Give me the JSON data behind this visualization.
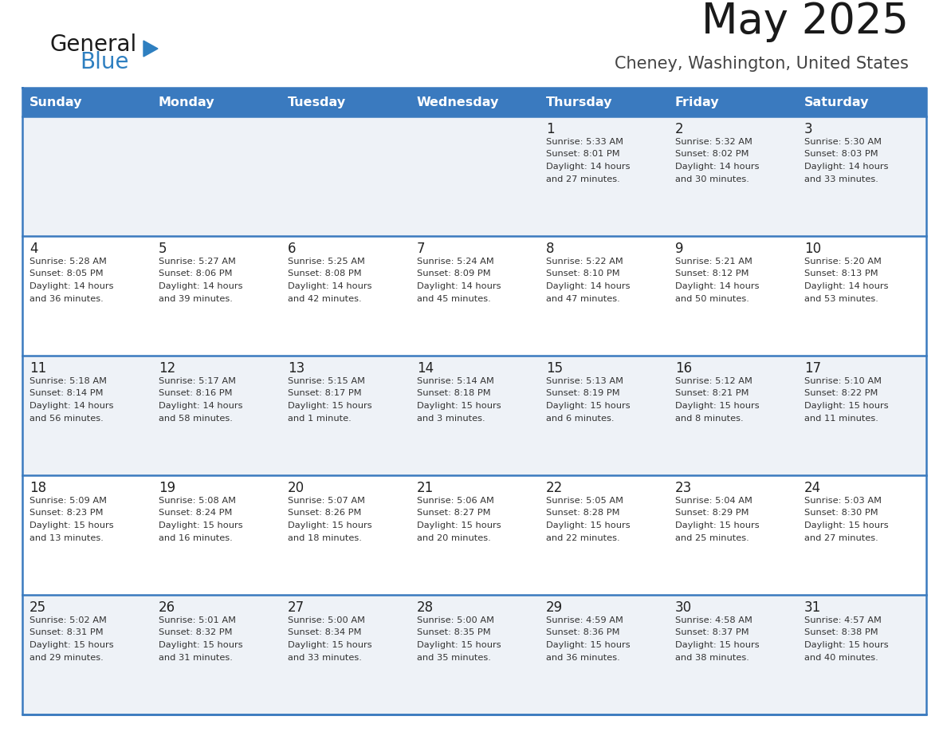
{
  "title": "May 2025",
  "subtitle": "Cheney, Washington, United States",
  "header_bg": "#3a7abf",
  "header_text_color": "#ffffff",
  "cell_bg_odd": "#eef2f7",
  "cell_bg_even": "#ffffff",
  "day_number_color": "#222222",
  "text_color": "#333333",
  "border_color": "#3a7abf",
  "days_of_week": [
    "Sunday",
    "Monday",
    "Tuesday",
    "Wednesday",
    "Thursday",
    "Friday",
    "Saturday"
  ],
  "calendar": [
    [
      null,
      null,
      null,
      null,
      {
        "day": 1,
        "sunrise": "5:33 AM",
        "sunset": "8:01 PM",
        "daylight_l1": "14 hours",
        "daylight_l2": "and 27 minutes."
      },
      {
        "day": 2,
        "sunrise": "5:32 AM",
        "sunset": "8:02 PM",
        "daylight_l1": "14 hours",
        "daylight_l2": "and 30 minutes."
      },
      {
        "day": 3,
        "sunrise": "5:30 AM",
        "sunset": "8:03 PM",
        "daylight_l1": "14 hours",
        "daylight_l2": "and 33 minutes."
      }
    ],
    [
      {
        "day": 4,
        "sunrise": "5:28 AM",
        "sunset": "8:05 PM",
        "daylight_l1": "14 hours",
        "daylight_l2": "and 36 minutes."
      },
      {
        "day": 5,
        "sunrise": "5:27 AM",
        "sunset": "8:06 PM",
        "daylight_l1": "14 hours",
        "daylight_l2": "and 39 minutes."
      },
      {
        "day": 6,
        "sunrise": "5:25 AM",
        "sunset": "8:08 PM",
        "daylight_l1": "14 hours",
        "daylight_l2": "and 42 minutes."
      },
      {
        "day": 7,
        "sunrise": "5:24 AM",
        "sunset": "8:09 PM",
        "daylight_l1": "14 hours",
        "daylight_l2": "and 45 minutes."
      },
      {
        "day": 8,
        "sunrise": "5:22 AM",
        "sunset": "8:10 PM",
        "daylight_l1": "14 hours",
        "daylight_l2": "and 47 minutes."
      },
      {
        "day": 9,
        "sunrise": "5:21 AM",
        "sunset": "8:12 PM",
        "daylight_l1": "14 hours",
        "daylight_l2": "and 50 minutes."
      },
      {
        "day": 10,
        "sunrise": "5:20 AM",
        "sunset": "8:13 PM",
        "daylight_l1": "14 hours",
        "daylight_l2": "and 53 minutes."
      }
    ],
    [
      {
        "day": 11,
        "sunrise": "5:18 AM",
        "sunset": "8:14 PM",
        "daylight_l1": "14 hours",
        "daylight_l2": "and 56 minutes."
      },
      {
        "day": 12,
        "sunrise": "5:17 AM",
        "sunset": "8:16 PM",
        "daylight_l1": "14 hours",
        "daylight_l2": "and 58 minutes."
      },
      {
        "day": 13,
        "sunrise": "5:15 AM",
        "sunset": "8:17 PM",
        "daylight_l1": "15 hours",
        "daylight_l2": "and 1 minute."
      },
      {
        "day": 14,
        "sunrise": "5:14 AM",
        "sunset": "8:18 PM",
        "daylight_l1": "15 hours",
        "daylight_l2": "and 3 minutes."
      },
      {
        "day": 15,
        "sunrise": "5:13 AM",
        "sunset": "8:19 PM",
        "daylight_l1": "15 hours",
        "daylight_l2": "and 6 minutes."
      },
      {
        "day": 16,
        "sunrise": "5:12 AM",
        "sunset": "8:21 PM",
        "daylight_l1": "15 hours",
        "daylight_l2": "and 8 minutes."
      },
      {
        "day": 17,
        "sunrise": "5:10 AM",
        "sunset": "8:22 PM",
        "daylight_l1": "15 hours",
        "daylight_l2": "and 11 minutes."
      }
    ],
    [
      {
        "day": 18,
        "sunrise": "5:09 AM",
        "sunset": "8:23 PM",
        "daylight_l1": "15 hours",
        "daylight_l2": "and 13 minutes."
      },
      {
        "day": 19,
        "sunrise": "5:08 AM",
        "sunset": "8:24 PM",
        "daylight_l1": "15 hours",
        "daylight_l2": "and 16 minutes."
      },
      {
        "day": 20,
        "sunrise": "5:07 AM",
        "sunset": "8:26 PM",
        "daylight_l1": "15 hours",
        "daylight_l2": "and 18 minutes."
      },
      {
        "day": 21,
        "sunrise": "5:06 AM",
        "sunset": "8:27 PM",
        "daylight_l1": "15 hours",
        "daylight_l2": "and 20 minutes."
      },
      {
        "day": 22,
        "sunrise": "5:05 AM",
        "sunset": "8:28 PM",
        "daylight_l1": "15 hours",
        "daylight_l2": "and 22 minutes."
      },
      {
        "day": 23,
        "sunrise": "5:04 AM",
        "sunset": "8:29 PM",
        "daylight_l1": "15 hours",
        "daylight_l2": "and 25 minutes."
      },
      {
        "day": 24,
        "sunrise": "5:03 AM",
        "sunset": "8:30 PM",
        "daylight_l1": "15 hours",
        "daylight_l2": "and 27 minutes."
      }
    ],
    [
      {
        "day": 25,
        "sunrise": "5:02 AM",
        "sunset": "8:31 PM",
        "daylight_l1": "15 hours",
        "daylight_l2": "and 29 minutes."
      },
      {
        "day": 26,
        "sunrise": "5:01 AM",
        "sunset": "8:32 PM",
        "daylight_l1": "15 hours",
        "daylight_l2": "and 31 minutes."
      },
      {
        "day": 27,
        "sunrise": "5:00 AM",
        "sunset": "8:34 PM",
        "daylight_l1": "15 hours",
        "daylight_l2": "and 33 minutes."
      },
      {
        "day": 28,
        "sunrise": "5:00 AM",
        "sunset": "8:35 PM",
        "daylight_l1": "15 hours",
        "daylight_l2": "and 35 minutes."
      },
      {
        "day": 29,
        "sunrise": "4:59 AM",
        "sunset": "8:36 PM",
        "daylight_l1": "15 hours",
        "daylight_l2": "and 36 minutes."
      },
      {
        "day": 30,
        "sunrise": "4:58 AM",
        "sunset": "8:37 PM",
        "daylight_l1": "15 hours",
        "daylight_l2": "and 38 minutes."
      },
      {
        "day": 31,
        "sunrise": "4:57 AM",
        "sunset": "8:38 PM",
        "daylight_l1": "15 hours",
        "daylight_l2": "and 40 minutes."
      }
    ]
  ],
  "logo_color_general": "#1a1a1a",
  "logo_color_blue": "#2e7fc0",
  "logo_triangle_color": "#2e7fc0",
  "title_color": "#1a1a1a",
  "subtitle_color": "#444444"
}
